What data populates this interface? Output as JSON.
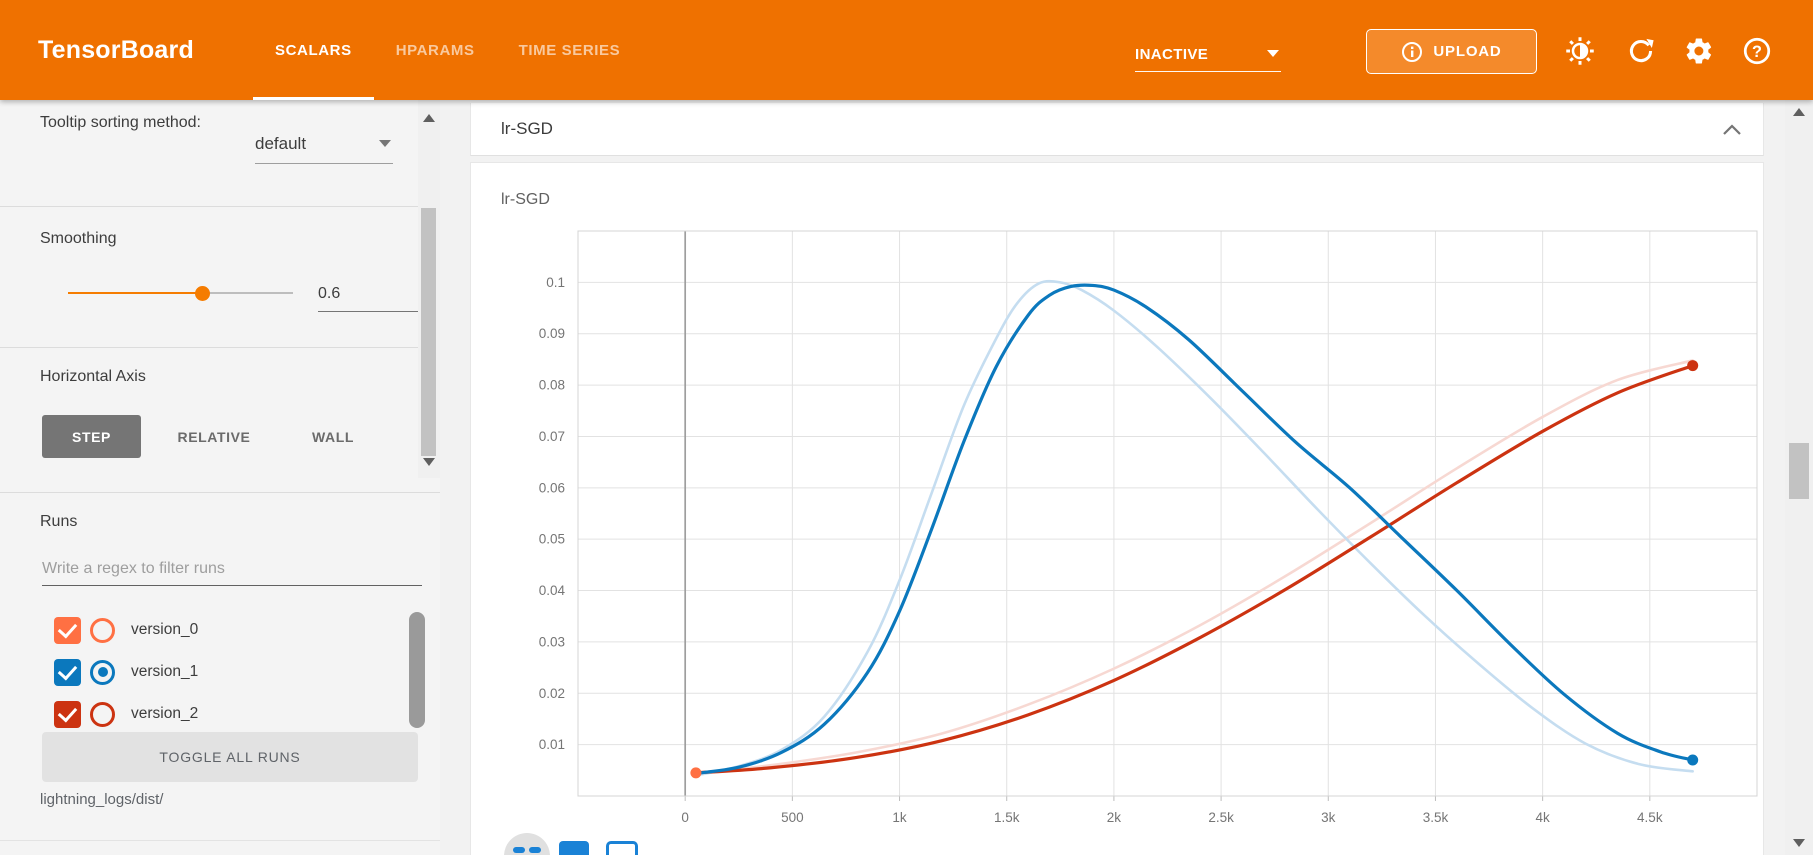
{
  "header": {
    "title": "TensorBoard",
    "tabs": [
      {
        "label": "SCALARS",
        "active": true
      },
      {
        "label": "HPARAMS",
        "active": false
      },
      {
        "label": "TIME SERIES",
        "active": false
      }
    ],
    "status_value": "INACTIVE",
    "upload_label": "UPLOAD",
    "upload_icon": "info-circle",
    "icons": [
      "brightness-toggle",
      "refresh",
      "settings-gear",
      "help"
    ],
    "accent_color": "#ef7100"
  },
  "sidebar": {
    "tooltip_sorting": {
      "label": "Tooltip sorting method:",
      "value": "default"
    },
    "smoothing": {
      "label": "Smoothing",
      "value": "0.6"
    },
    "horizontal_axis": {
      "label": "Horizontal Axis",
      "options": [
        "STEP",
        "RELATIVE",
        "WALL"
      ],
      "selected": "STEP"
    },
    "runs": {
      "label": "Runs",
      "filter_placeholder": "Write a regex to filter runs",
      "items": [
        {
          "name": "version_0",
          "color": "#ff7043",
          "checked": true,
          "radio_selected": false
        },
        {
          "name": "version_1",
          "color": "#0b78bd",
          "checked": true,
          "radio_selected": true
        },
        {
          "name": "version_2",
          "color": "#cc3311",
          "checked": true,
          "radio_selected": false
        }
      ],
      "toggle_label": "TOGGLE ALL RUNS",
      "log_dir": "lightning_logs/dist/"
    }
  },
  "main": {
    "group_title": "lr-SGD",
    "collapse_icon": "chevron-up"
  },
  "chart_data": {
    "type": "line",
    "title": "lr-SGD",
    "xlim": [
      -500,
      5000
    ],
    "ylim": [
      0,
      0.11
    ],
    "grid": true,
    "smoothing_applied": 0.6,
    "xticks": [
      {
        "value": 0,
        "label": "0"
      },
      {
        "value": 500,
        "label": "500"
      },
      {
        "value": 1000,
        "label": "1k"
      },
      {
        "value": 1500,
        "label": "1.5k"
      },
      {
        "value": 2000,
        "label": "2k"
      },
      {
        "value": 2500,
        "label": "2.5k"
      },
      {
        "value": 3000,
        "label": "3k"
      },
      {
        "value": 3500,
        "label": "3.5k"
      },
      {
        "value": 4000,
        "label": "4k"
      },
      {
        "value": 4500,
        "label": "4.5k"
      }
    ],
    "yticks": [
      {
        "value": 0.01,
        "label": "0.01"
      },
      {
        "value": 0.02,
        "label": "0.02"
      },
      {
        "value": 0.03,
        "label": "0.03"
      },
      {
        "value": 0.04,
        "label": "0.04"
      },
      {
        "value": 0.05,
        "label": "0.05"
      },
      {
        "value": 0.06,
        "label": "0.06"
      },
      {
        "value": 0.07,
        "label": "0.07"
      },
      {
        "value": 0.08,
        "label": "0.08"
      },
      {
        "value": 0.09,
        "label": "0.09"
      },
      {
        "value": 0.1,
        "label": "0.1"
      }
    ],
    "series": [
      {
        "name": "version_0 / version_2 (overlapping)",
        "color": "#cc3311",
        "faint_color": "#f7d8d2",
        "smoothed": [
          [
            50,
            0.0045
          ],
          [
            400,
            0.0055
          ],
          [
            800,
            0.0075
          ],
          [
            1200,
            0.0108
          ],
          [
            1600,
            0.0158
          ],
          [
            2000,
            0.0225
          ],
          [
            2400,
            0.0308
          ],
          [
            2800,
            0.0402
          ],
          [
            3200,
            0.0505
          ],
          [
            3600,
            0.061
          ],
          [
            4000,
            0.071
          ],
          [
            4350,
            0.0785
          ],
          [
            4700,
            0.0838
          ]
        ],
        "original": [
          [
            50,
            0.0044
          ],
          [
            400,
            0.006
          ],
          [
            800,
            0.0085
          ],
          [
            1200,
            0.0122
          ],
          [
            1600,
            0.0178
          ],
          [
            2000,
            0.0248
          ],
          [
            2400,
            0.0332
          ],
          [
            2800,
            0.0428
          ],
          [
            3200,
            0.0532
          ],
          [
            3600,
            0.0638
          ],
          [
            4000,
            0.0738
          ],
          [
            4350,
            0.081
          ],
          [
            4700,
            0.0848
          ]
        ]
      },
      {
        "name": "version_1",
        "color": "#0b78bd",
        "faint_color": "#c5ddf0",
        "smoothed": [
          [
            50,
            0.0044
          ],
          [
            250,
            0.0056
          ],
          [
            450,
            0.0085
          ],
          [
            650,
            0.014
          ],
          [
            850,
            0.024
          ],
          [
            1000,
            0.036
          ],
          [
            1150,
            0.052
          ],
          [
            1300,
            0.069
          ],
          [
            1450,
            0.0835
          ],
          [
            1600,
            0.0936
          ],
          [
            1700,
            0.0975
          ],
          [
            1800,
            0.0992
          ],
          [
            1900,
            0.0994
          ],
          [
            2000,
            0.0985
          ],
          [
            2150,
            0.0952
          ],
          [
            2350,
            0.0888
          ],
          [
            2600,
            0.0788
          ],
          [
            2850,
            0.0688
          ],
          [
            3100,
            0.06
          ],
          [
            3350,
            0.05
          ],
          [
            3600,
            0.04
          ],
          [
            3850,
            0.0295
          ],
          [
            4100,
            0.0198
          ],
          [
            4350,
            0.0122
          ],
          [
            4550,
            0.0086
          ],
          [
            4700,
            0.007
          ]
        ],
        "original": [
          [
            50,
            0.004
          ],
          [
            250,
            0.0058
          ],
          [
            450,
            0.009
          ],
          [
            650,
            0.0155
          ],
          [
            850,
            0.028
          ],
          [
            1000,
            0.042
          ],
          [
            1150,
            0.059
          ],
          [
            1300,
            0.076
          ],
          [
            1450,
            0.089
          ],
          [
            1550,
            0.096
          ],
          [
            1650,
            0.0998
          ],
          [
            1750,
            0.1
          ],
          [
            1850,
            0.0985
          ],
          [
            2000,
            0.0945
          ],
          [
            2200,
            0.0875
          ],
          [
            2450,
            0.0775
          ],
          [
            2700,
            0.0668
          ],
          [
            2950,
            0.0558
          ],
          [
            3200,
            0.0452
          ],
          [
            3450,
            0.0351
          ],
          [
            3700,
            0.0258
          ],
          [
            3950,
            0.0172
          ],
          [
            4200,
            0.0102
          ],
          [
            4450,
            0.0062
          ],
          [
            4700,
            0.0048
          ]
        ]
      }
    ],
    "markers": [
      {
        "x": 50,
        "y": 0.0045,
        "color": "#ff7043",
        "note": "start point (version_0)"
      },
      {
        "x": 4700,
        "y": 0.0838,
        "color": "#cc3311",
        "note": "end point (version_2)"
      },
      {
        "x": 4700,
        "y": 0.007,
        "color": "#0b78bd",
        "note": "end point (version_1)"
      }
    ]
  }
}
